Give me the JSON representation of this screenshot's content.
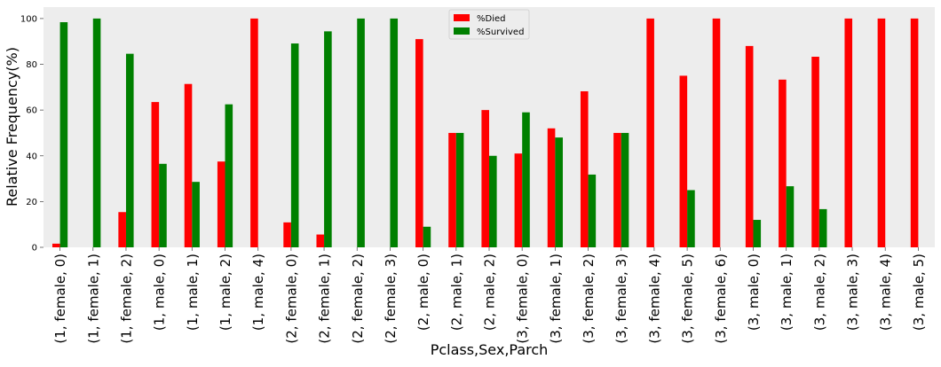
{
  "chart_data": {
    "type": "bar",
    "xlabel": "Pclass,Sex,Parch",
    "ylabel": "Relative Frequency(%)",
    "ylim": [
      0,
      105
    ],
    "yticks": [
      0,
      20,
      40,
      60,
      80,
      100
    ],
    "grid": false,
    "legend_position": "top-center",
    "categories": [
      "(1, female, 0)",
      "(1, female, 1)",
      "(1, female, 2)",
      "(1, male, 0)",
      "(1, male, 1)",
      "(1, male, 2)",
      "(1, male, 4)",
      "(2, female, 0)",
      "(2, female, 1)",
      "(2, female, 2)",
      "(2, female, 3)",
      "(2, male, 0)",
      "(2, male, 1)",
      "(2, male, 2)",
      "(3, female, 0)",
      "(3, female, 1)",
      "(3, female, 2)",
      "(3, female, 3)",
      "(3, female, 4)",
      "(3, female, 5)",
      "(3, female, 6)",
      "(3, male, 0)",
      "(3, male, 1)",
      "(3, male, 2)",
      "(3, male, 3)",
      "(3, male, 4)",
      "(3, male, 5)"
    ],
    "series": [
      {
        "name": "%Died",
        "color": "#ff0000",
        "values": [
          1.6,
          0,
          15.4,
          63.5,
          71.4,
          37.5,
          100,
          10.9,
          5.6,
          0,
          0,
          91.0,
          50.0,
          60.0,
          41.0,
          52.0,
          68.2,
          50.0,
          100,
          75.0,
          100,
          88.0,
          73.3,
          83.3,
          100,
          100,
          100
        ]
      },
      {
        "name": "%Survived",
        "color": "#008000",
        "values": [
          98.4,
          100,
          84.6,
          36.5,
          28.6,
          62.5,
          0,
          89.1,
          94.4,
          100,
          100,
          9.0,
          50.0,
          40.0,
          59.0,
          48.0,
          31.8,
          50.0,
          0,
          25.0,
          0,
          12.0,
          26.7,
          16.7,
          0,
          0,
          0
        ]
      }
    ]
  }
}
